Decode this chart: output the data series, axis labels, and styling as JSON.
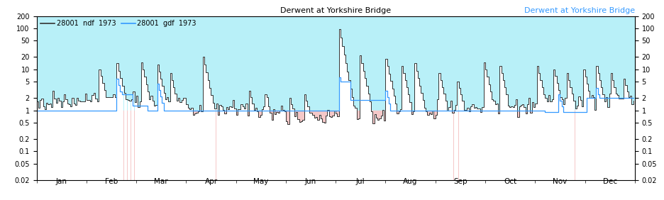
{
  "title_center": "Derwent at Yorkshire Bridge",
  "title_right": "Derwent at Yorkshire Bridge",
  "legend_ndf": "28001  ndf  1973",
  "legend_gdf": "28001  gdf  1973",
  "year": 1973,
  "ylim_log": [
    0.02,
    200
  ],
  "yticks": [
    0.02,
    0.05,
    0.1,
    0.2,
    0.5,
    1,
    2,
    5,
    10,
    20,
    50,
    100,
    200
  ],
  "ytick_labels": [
    "0.02",
    "0.05",
    "0.1",
    "0.2",
    "0.5",
    "1",
    "2",
    "5",
    "10",
    "20",
    "50",
    "100",
    "200"
  ],
  "background_top_color": "#b8f0f8",
  "background_bottom_color": "#f5c8c8",
  "ndf_color": "#333333",
  "gdf_color": "#3399ff",
  "white_fill_color": "#ffffff",
  "fill_boundary": 1.0,
  "x_month_labels": [
    "Jan",
    "Feb",
    "Mar",
    "Apr",
    "May",
    "Jun",
    "Jul",
    "Aug",
    "Sep",
    "Oct",
    "Nov",
    "Dec"
  ],
  "fig_width": 9.37,
  "fig_height": 2.82,
  "dpi": 100
}
